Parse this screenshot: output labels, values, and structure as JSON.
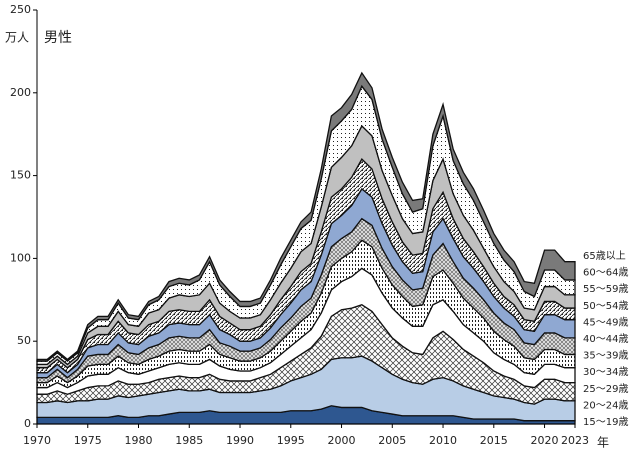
{
  "chart_data": {
    "type": "stacked-area",
    "title": "男性",
    "y_label": "万人",
    "x_label": "年",
    "x": [
      1970,
      1971,
      1972,
      1973,
      1974,
      1975,
      1976,
      1977,
      1978,
      1979,
      1980,
      1981,
      1982,
      1983,
      1984,
      1985,
      1986,
      1987,
      1988,
      1989,
      1990,
      1991,
      1992,
      1993,
      1994,
      1995,
      1996,
      1997,
      1998,
      1999,
      2000,
      2001,
      2002,
      2003,
      2004,
      2005,
      2006,
      2007,
      2008,
      2009,
      2010,
      2011,
      2012,
      2013,
      2014,
      2015,
      2016,
      2017,
      2018,
      2019,
      2020,
      2021,
      2022,
      2023
    ],
    "xlim": [
      1970,
      2023
    ],
    "xticks": [
      1970,
      1975,
      1980,
      1985,
      1990,
      1995,
      2000,
      2005,
      2010,
      2015,
      2020,
      2023
    ],
    "ylim": [
      0,
      250
    ],
    "yticks": [
      0,
      50,
      100,
      150,
      200,
      250
    ],
    "series": [
      {
        "name": "15～19歳",
        "color": "#2e5790",
        "values": [
          4,
          4,
          4,
          4,
          4,
          4,
          4,
          4,
          5,
          4,
          4,
          5,
          5,
          6,
          7,
          7,
          7,
          8,
          7,
          7,
          7,
          7,
          7,
          7,
          7,
          8,
          8,
          8,
          9,
          11,
          10,
          10,
          10,
          8,
          7,
          6,
          5,
          5,
          5,
          5,
          5,
          5,
          4,
          3,
          3,
          3,
          3,
          3,
          2,
          2,
          2,
          2,
          2,
          2
        ]
      },
      {
        "name": "20～24歳",
        "color": "#b8cde6",
        "values": [
          9,
          9,
          10,
          9,
          10,
          10,
          11,
          11,
          12,
          12,
          13,
          13,
          14,
          14,
          14,
          13,
          13,
          13,
          12,
          12,
          12,
          12,
          13,
          14,
          16,
          18,
          20,
          22,
          24,
          28,
          30,
          30,
          31,
          30,
          27,
          24,
          22,
          20,
          19,
          22,
          23,
          21,
          19,
          18,
          16,
          14,
          13,
          12,
          11,
          10,
          13,
          13,
          12,
          12
        ]
      },
      {
        "name": "25～29歳",
        "color": "#ffffff",
        "values": [
          5,
          5,
          6,
          5,
          6,
          8,
          8,
          8,
          9,
          8,
          7,
          7,
          8,
          8,
          8,
          8,
          8,
          9,
          8,
          7,
          7,
          7,
          8,
          9,
          11,
          12,
          14,
          16,
          20,
          26,
          29,
          30,
          31,
          30,
          26,
          22,
          20,
          18,
          18,
          25,
          28,
          25,
          22,
          20,
          18,
          15,
          13,
          12,
          10,
          10,
          12,
          12,
          11,
          11
        ]
      },
      {
        "name": "30～34歳",
        "color": "#ffffff",
        "values": [
          4,
          4,
          5,
          4,
          5,
          7,
          7,
          7,
          8,
          7,
          6,
          7,
          7,
          8,
          8,
          8,
          8,
          9,
          8,
          7,
          6,
          6,
          6,
          7,
          8,
          9,
          10,
          11,
          14,
          16,
          17,
          19,
          22,
          22,
          19,
          18,
          17,
          16,
          17,
          20,
          19,
          17,
          15,
          14,
          13,
          11,
          10,
          9,
          8,
          8,
          9,
          9,
          9,
          9
        ]
      },
      {
        "name": "35～39歳",
        "color": "#ffffff",
        "values": [
          3,
          3,
          4,
          3,
          4,
          6,
          6,
          6,
          7,
          6,
          6,
          7,
          7,
          8,
          8,
          8,
          8,
          9,
          7,
          7,
          6,
          6,
          6,
          7,
          8,
          9,
          10,
          10,
          12,
          14,
          14,
          15,
          17,
          17,
          15,
          14,
          13,
          12,
          13,
          17,
          18,
          17,
          16,
          15,
          14,
          13,
          12,
          11,
          9,
          9,
          9,
          9,
          8,
          8
        ]
      },
      {
        "name": "40～44歳",
        "color": "#e4e4e4",
        "values": [
          3,
          3,
          4,
          3,
          4,
          6,
          6,
          6,
          7,
          6,
          6,
          7,
          7,
          8,
          8,
          8,
          8,
          9,
          7,
          7,
          6,
          6,
          6,
          7,
          8,
          8,
          9,
          9,
          11,
          12,
          12,
          12,
          13,
          13,
          12,
          11,
          10,
          10,
          10,
          13,
          16,
          13,
          12,
          12,
          11,
          11,
          10,
          10,
          9,
          9,
          10,
          10,
          10,
          10
        ]
      },
      {
        "name": "45～49歳",
        "color": "#8fa8d2",
        "values": [
          3,
          3,
          3,
          3,
          3,
          5,
          6,
          6,
          7,
          6,
          6,
          7,
          7,
          8,
          8,
          8,
          8,
          9,
          8,
          7,
          6,
          6,
          6,
          7,
          8,
          9,
          10,
          10,
          12,
          14,
          14,
          16,
          18,
          17,
          15,
          13,
          11,
          10,
          10,
          14,
          15,
          14,
          13,
          12,
          11,
          10,
          9,
          8,
          8,
          8,
          11,
          11,
          11,
          11
        ]
      },
      {
        "name": "50～54歳",
        "color": "#ffffff",
        "values": [
          3,
          3,
          3,
          3,
          3,
          5,
          6,
          6,
          7,
          6,
          6,
          7,
          7,
          8,
          8,
          8,
          8,
          9,
          8,
          7,
          7,
          7,
          7,
          8,
          9,
          10,
          11,
          11,
          14,
          16,
          16,
          17,
          18,
          17,
          15,
          14,
          12,
          11,
          11,
          14,
          16,
          12,
          11,
          10,
          9,
          8,
          7,
          7,
          6,
          6,
          8,
          8,
          7,
          7
        ]
      },
      {
        "name": "55～59歳",
        "color": "#c0c0c0",
        "values": [
          2,
          2,
          2,
          2,
          2,
          4,
          5,
          5,
          6,
          5,
          5,
          7,
          7,
          8,
          9,
          9,
          10,
          10,
          8,
          7,
          7,
          7,
          7,
          9,
          10,
          11,
          12,
          12,
          15,
          18,
          19,
          19,
          20,
          20,
          17,
          16,
          14,
          13,
          13,
          17,
          20,
          15,
          14,
          13,
          11,
          10,
          9,
          8,
          7,
          7,
          9,
          9,
          8,
          8
        ]
      },
      {
        "name": "60～64歳",
        "color": "#ffffff",
        "values": [
          2,
          2,
          2,
          2,
          2,
          3,
          4,
          4,
          5,
          4,
          4,
          5,
          6,
          7,
          7,
          7,
          9,
          13,
          11,
          9,
          7,
          7,
          7,
          9,
          11,
          13,
          14,
          14,
          17,
          22,
          22,
          22,
          24,
          22,
          19,
          17,
          15,
          13,
          14,
          21,
          26,
          20,
          19,
          18,
          16,
          14,
          13,
          12,
          10,
          8,
          10,
          10,
          9,
          9
        ]
      },
      {
        "name": "65歳以上",
        "color": "#7a7a7a",
        "values": [
          1,
          1,
          1,
          1,
          1,
          2,
          2,
          2,
          2,
          2,
          2,
          2,
          2,
          3,
          3,
          3,
          3,
          3,
          3,
          3,
          3,
          3,
          3,
          3,
          4,
          4,
          4,
          5,
          6,
          9,
          8,
          9,
          8,
          7,
          6,
          6,
          7,
          7,
          6,
          7,
          7,
          7,
          7,
          7,
          7,
          6,
          6,
          6,
          6,
          8,
          12,
          12,
          11,
          11
        ]
      }
    ]
  }
}
